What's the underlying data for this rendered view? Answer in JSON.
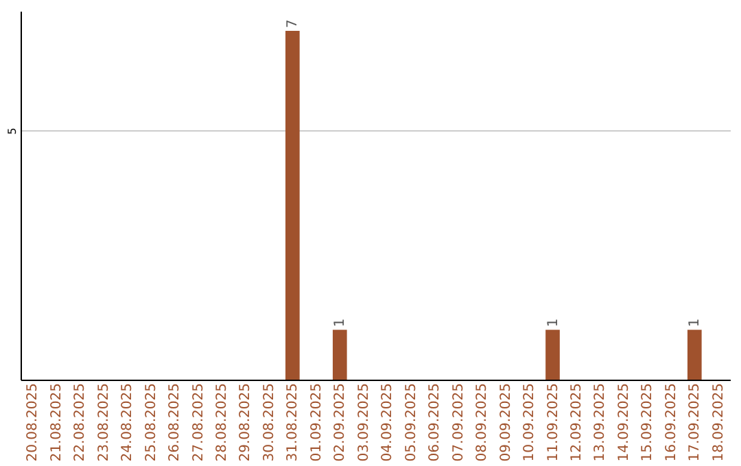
{
  "chart_data": {
    "type": "bar",
    "categories": [
      "20.08.2025",
      "21.08.2025",
      "22.08.2025",
      "23.08.2025",
      "24.08.2025",
      "25.08.2025",
      "26.08.2025",
      "27.08.2025",
      "28.08.2025",
      "29.08.2025",
      "30.08.2025",
      "31.08.2025",
      "01.09.2025",
      "02.09.2025",
      "03.09.2025",
      "04.09.2025",
      "05.09.2025",
      "06.09.2025",
      "07.09.2025",
      "08.09.2025",
      "09.09.2025",
      "10.09.2025",
      "11.09.2025",
      "12.09.2025",
      "13.09.2025",
      "14.09.2025",
      "15.09.2025",
      "16.09.2025",
      "17.09.2025",
      "18.09.2025"
    ],
    "values": [
      0,
      0,
      0,
      0,
      0,
      0,
      0,
      0,
      0,
      0,
      0,
      7,
      0,
      1,
      0,
      0,
      0,
      0,
      0,
      0,
      0,
      0,
      1,
      0,
      0,
      0,
      0,
      0,
      1,
      0
    ],
    "value_labels": [
      null,
      null,
      null,
      null,
      null,
      null,
      null,
      null,
      null,
      null,
      null,
      "7",
      null,
      "1",
      null,
      null,
      null,
      null,
      null,
      null,
      null,
      null,
      "1",
      null,
      null,
      null,
      null,
      null,
      "1",
      null
    ],
    "color": "#a0522d",
    "ylim": [
      0,
      7.4
    ],
    "yticks": [
      5
    ],
    "grid": "y"
  }
}
